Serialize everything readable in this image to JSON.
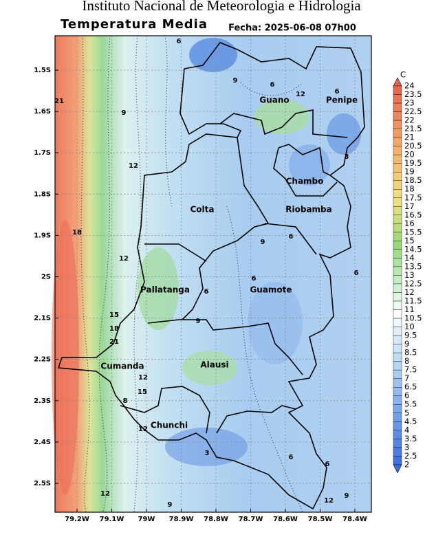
{
  "header": {
    "title": "Instituto Nacional de Meteorologia e Hidrologia",
    "subtitle": "Temperatura Media",
    "date": "Fecha: 2025-06-08 07h00"
  },
  "map": {
    "lat_labels": [
      "1.5S",
      "1.6S",
      "1.7S",
      "1.8S",
      "1.9S",
      "2S",
      "2.1S",
      "2.2S",
      "2.3S",
      "2.4S",
      "2.5S"
    ],
    "lon_labels": [
      "79.2W",
      "79.1W",
      "79W",
      "78.9W",
      "78.8W",
      "78.7W",
      "78.6W",
      "78.5W",
      "78.4W"
    ],
    "regions": [
      "Guano",
      "Penipe",
      "Chambo",
      "Colta",
      "Riobamba",
      "Pallatanga",
      "Guamote",
      "Cumanda",
      "Alausi",
      "Chunchi"
    ],
    "contour_labels": [
      6,
      9,
      6,
      12,
      6,
      21,
      9,
      12,
      3,
      18,
      12,
      9,
      6,
      6,
      6,
      6,
      15,
      18,
      21,
      9,
      12,
      8,
      15,
      12,
      3,
      6,
      6,
      12,
      9,
      12,
      9
    ]
  },
  "colorbar": {
    "unit": "C",
    "levels": [
      24,
      23.5,
      23,
      22.5,
      22,
      21.5,
      21,
      20.5,
      20,
      19.5,
      19,
      18.5,
      18,
      17.5,
      17,
      16.5,
      16,
      15.5,
      15,
      14.5,
      14,
      13.5,
      13,
      12.5,
      12,
      11.5,
      11,
      10.5,
      10,
      9.5,
      9,
      8.5,
      8,
      7.5,
      7,
      6.5,
      6,
      5.5,
      5,
      4.5,
      4,
      3.5,
      3,
      2.5,
      2
    ]
  }
}
